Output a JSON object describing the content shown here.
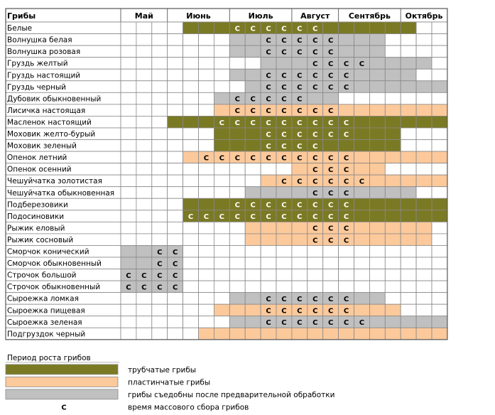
{
  "table": {
    "corner_label": "Грибы",
    "months": [
      "Май",
      "Июнь",
      "Июль",
      "Август",
      "Сентябрь",
      "Октябрь"
    ],
    "mass_harvest_symbol": "С",
    "colors": {
      "tubular": "#7b7a24",
      "lamellar": "#fcc99b",
      "conditional": "#c0c0c0",
      "empty": "#ffffff"
    },
    "rows": [
      {
        "name": "Белые",
        "cells": "....TTTTTTTTTTTTTTT..",
        "marks": [
          7,
          8,
          9,
          10,
          11,
          12
        ]
      },
      {
        "name": "Волнушка белая",
        "cells": ".......GGGGGGGGGG....",
        "marks": [
          9,
          10,
          11,
          12,
          13
        ]
      },
      {
        "name": "Волнушка розовая",
        "cells": ".......GGGGGGGGGG....",
        "marks": [
          9,
          10,
          11,
          12,
          13
        ]
      },
      {
        "name": "Груздь желтый",
        "cells": ".........GGGGGGGGGGG.",
        "marks": [
          12,
          13,
          14,
          15
        ]
      },
      {
        "name": "Груздь настоящий",
        "cells": ".......GGGGGGGGGGGG..",
        "marks": [
          9,
          10,
          11,
          12,
          13,
          14
        ]
      },
      {
        "name": "Груздь черный",
        "cells": "........GGGGGGGGGGGGG",
        "marks": [
          9,
          10,
          11,
          12,
          13,
          14
        ]
      },
      {
        "name": "Дубовик обыкновенный",
        "cells": "......GGGGGGGG.......",
        "marks": [
          7,
          8,
          9,
          10,
          11
        ]
      },
      {
        "name": "Лисичка настоящая",
        "cells": "......PPPPPPPPPPPPPPP",
        "marks": [
          7,
          8,
          9,
          10,
          11,
          12,
          13
        ]
      },
      {
        "name": "Масленок настоящий",
        "cells": "...TTTTTTTTTTTTTTTTTT",
        "marks": [
          6,
          7,
          8,
          9,
          10,
          11,
          12,
          13,
          14
        ]
      },
      {
        "name": "Моховик желто-бурый",
        "cells": "......TTTTTTTTTTTT...",
        "marks": [
          9,
          10,
          11,
          12,
          13,
          14
        ]
      },
      {
        "name": "Моховик зеленый",
        "cells": "......TTTTTTTTTTTT...",
        "marks": [
          9,
          10,
          11,
          12
        ]
      },
      {
        "name": "Опенок летний",
        "cells": "....PPPPPPPPPPPPPPPPP",
        "marks": [
          5,
          6,
          7,
          8,
          9,
          10,
          11,
          12,
          13,
          14
        ]
      },
      {
        "name": "Опенок осенний",
        "cells": "...........PPPPPP....",
        "marks": [
          12,
          13,
          14
        ]
      },
      {
        "name": "Чешуйчатка золотистая",
        "cells": ".........PPPPPPPPPPPP",
        "marks": [
          10,
          11,
          12,
          13,
          14,
          15
        ]
      },
      {
        "name": "Чешуйчатка обыкновенная",
        "cells": "........GGGGGGGGGGG..",
        "marks": [
          12,
          13,
          14
        ]
      },
      {
        "name": "Подберезовики",
        "cells": "....TTTTTTTTTTTTTTTTT",
        "marks": [
          7,
          8,
          9,
          10,
          11,
          12,
          13,
          14
        ]
      },
      {
        "name": "Подосиновики",
        "cells": "....TTTTTTTTTTTTTTTTT",
        "marks": [
          4,
          5,
          6,
          7,
          8,
          9,
          10,
          11,
          12,
          13,
          14
        ]
      },
      {
        "name": "Рыжик еловый",
        "cells": "........PPPPPPPPPPPP.",
        "marks": [
          12,
          13,
          14
        ]
      },
      {
        "name": "Рыжик сосновый",
        "cells": "........PPPPPPPPPPPP.",
        "marks": [
          12,
          13,
          14
        ]
      },
      {
        "name": "Сморчок конический",
        "cells": "GGGG.................",
        "marks": [
          2,
          3
        ]
      },
      {
        "name": "Сморчок обыкновенный",
        "cells": "GGGG.................",
        "marks": [
          2,
          3
        ]
      },
      {
        "name": "Строчок большой",
        "cells": "GGGG.................",
        "marks": [
          0,
          1,
          2,
          3
        ]
      },
      {
        "name": "Строчок обыкновенный",
        "cells": "GGGG.................",
        "marks": [
          0,
          1,
          2,
          3
        ]
      },
      {
        "name": "Сыроежка ломкая",
        "cells": ".......GGGGGGGGGG....",
        "marks": [
          9,
          10,
          11,
          12,
          13,
          14
        ]
      },
      {
        "name": "Сыроежка пищевая",
        "cells": "......PPPPPPPPPPPP...",
        "marks": [
          9,
          10,
          11,
          12,
          13,
          14
        ]
      },
      {
        "name": "Сыроежка зеленая",
        "cells": ".......GGGGGGGGGGGGGG",
        "marks": [
          9,
          10,
          11,
          12,
          13,
          14,
          15
        ]
      },
      {
        "name": "Подгруздок черный",
        "cells": ".....PPPPPPPPPPPPPPPP",
        "marks": []
      }
    ]
  },
  "legend": {
    "title": "Период роста грибов",
    "items": [
      {
        "type": "tubular",
        "label": "трубчатые грибы"
      },
      {
        "type": "lamellar",
        "label": "пластинчатые грибы"
      },
      {
        "type": "conditional",
        "label": "грибы съедобны после предварительной обработки"
      },
      {
        "type": "mark",
        "symbol": "С",
        "label": "время массового сбора грибов"
      }
    ]
  }
}
